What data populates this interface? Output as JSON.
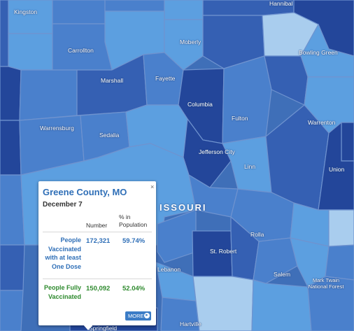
{
  "map": {
    "state_label": "ISSOURI",
    "places": [
      {
        "id": "kingston",
        "name": "Kingston"
      },
      {
        "id": "hannibal",
        "name": "Hannibal"
      },
      {
        "id": "carrollton",
        "name": "Carrollton"
      },
      {
        "id": "moberly",
        "name": "Moberly"
      },
      {
        "id": "bowling-green",
        "name": "Bowling Green"
      },
      {
        "id": "marshall",
        "name": "Marshall"
      },
      {
        "id": "fayette",
        "name": "Fayette"
      },
      {
        "id": "columbia",
        "name": "Columbia"
      },
      {
        "id": "fulton",
        "name": "Fulton"
      },
      {
        "id": "warrenton",
        "name": "Warrenton"
      },
      {
        "id": "warrensburg",
        "name": "Warrensburg"
      },
      {
        "id": "sedalia",
        "name": "Sedalia"
      },
      {
        "id": "jefferson-city",
        "name": "Jefferson City"
      },
      {
        "id": "linn",
        "name": "Linn"
      },
      {
        "id": "union",
        "name": "Union"
      },
      {
        "id": "rolla",
        "name": "Rolla"
      },
      {
        "id": "st-robert",
        "name": "St. Robert"
      },
      {
        "id": "lebanon",
        "name": "Lebanon"
      },
      {
        "id": "salem",
        "name": "Salem"
      },
      {
        "id": "mark-twain",
        "name": "Mark Twain National Forest"
      },
      {
        "id": "hartville",
        "name": "Hartville"
      },
      {
        "id": "springfield",
        "name": "Springfield"
      }
    ],
    "colors": {
      "lightest": "#a9cdee",
      "light": "#5c9fe0",
      "medium": "#4a80cc",
      "dark": "#3560b3",
      "darkest": "#23469a"
    }
  },
  "popup": {
    "title": "Greene County, MO",
    "date": "December 7",
    "close_icon": "×",
    "col_number": "Number",
    "col_percent": "% in Population",
    "rows": [
      {
        "label": "People Vaccinated with at least One Dose",
        "number": "172,321",
        "percent": "59.74%"
      },
      {
        "label": "People Fully Vaccinated",
        "number": "150,092",
        "percent": "52.04%"
      }
    ],
    "more_label": "MORE"
  }
}
